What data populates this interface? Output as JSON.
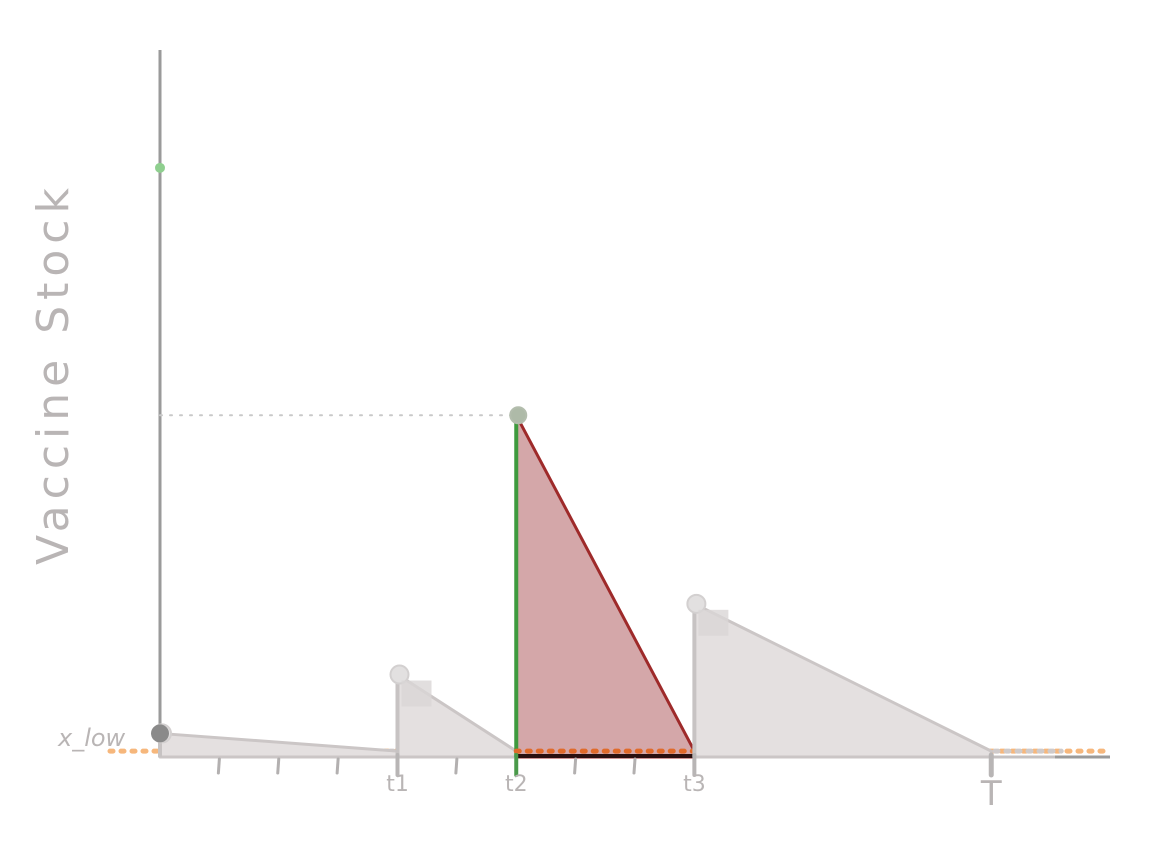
{
  "chart_data": {
    "type": "area",
    "ylabel": "Vaccine Stock",
    "reference_line_label": "x_low",
    "x_tick_labels": [
      "t1",
      "t2",
      "t3",
      "T"
    ],
    "minor_ticks": [
      1,
      2,
      3,
      5,
      7,
      8
    ],
    "xlim": [
      0,
      16
    ],
    "ylim": [
      0,
      12
    ],
    "x_low": 0.1,
    "top_marker_y": 10.0,
    "dotted_reference_y": 5.8,
    "series": [
      {
        "x": [
          0,
          4
        ],
        "y": [
          0.4,
          0.1
        ],
        "highlight": false
      },
      {
        "x": [
          4,
          6
        ],
        "y": [
          1.4,
          0.1
        ],
        "highlight": false
      },
      {
        "x": [
          6,
          9
        ],
        "y": [
          5.8,
          0.1
        ],
        "highlight": true
      },
      {
        "x": [
          9,
          14
        ],
        "y": [
          2.6,
          0.1
        ],
        "highlight": false
      }
    ],
    "colors": {
      "faded_fill": "#e4e0e0",
      "faded_stroke": "#cbc6c6",
      "highlight_fill": "#d4a7a9",
      "highlight_stroke": "#9e2a2a",
      "refill_line": "#3e9a3e",
      "top_marker": "#8fcf8f",
      "xlow_line": "#f6b77c",
      "axis": "#9a9a9a"
    }
  }
}
